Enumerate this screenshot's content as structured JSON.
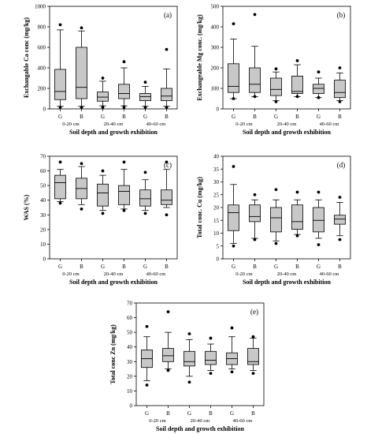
{
  "figure": {
    "xlabel": "Soil depth and growth exhibition",
    "group_labels": [
      "G",
      "B",
      "G",
      "B",
      "G",
      "B"
    ],
    "depth_labels": [
      "0-20 cm",
      "20-40 cm",
      "40-60 cm"
    ]
  },
  "colors": {
    "box_fill": "#c8c8c8",
    "stroke": "#000000",
    "outlier": "#000000"
  },
  "chart_data": [
    {
      "type": "box",
      "panel": "(a)",
      "ylabel": "Exchangable Ca conc (mg/kg)",
      "ylim": [
        0,
        1000
      ],
      "yticks": [
        0,
        200,
        400,
        600,
        800,
        1000
      ],
      "categories": [
        "G 0-20 cm",
        "B 0-20 cm",
        "G 20-40 cm",
        "B 20-40 cm",
        "G 40-60 cm",
        "B 40-60 cm"
      ],
      "boxes": [
        {
          "whisker_low": 25,
          "q1": 90,
          "median": 170,
          "q3": 385,
          "whisker_high": 770,
          "outliers": [
            15,
            820
          ]
        },
        {
          "whisker_low": 25,
          "q1": 100,
          "median": 210,
          "q3": 600,
          "whisker_high": 760,
          "outliers": [
            15,
            790
          ]
        },
        {
          "whisker_low": 30,
          "q1": 75,
          "median": 115,
          "q3": 165,
          "whisker_high": 270,
          "outliers": [
            15,
            300
          ]
        },
        {
          "whisker_low": 30,
          "q1": 100,
          "median": 150,
          "q3": 240,
          "whisker_high": 400,
          "outliers": [
            15,
            460
          ]
        },
        {
          "whisker_low": 25,
          "q1": 80,
          "median": 120,
          "q3": 150,
          "whisker_high": 220,
          "outliers": [
            15,
            260
          ]
        },
        {
          "whisker_low": 25,
          "q1": 80,
          "median": 125,
          "q3": 200,
          "whisker_high": 390,
          "outliers": [
            15,
            580
          ]
        }
      ]
    },
    {
      "type": "box",
      "panel": "(b)",
      "ylabel": "Exchangeable Mg conc. (mg/kg)",
      "ylim": [
        0,
        500
      ],
      "yticks": [
        0,
        100,
        200,
        300,
        400,
        500
      ],
      "categories": [
        "G 0-20 cm",
        "B 0-20 cm",
        "G 20-40 cm",
        "B 20-40 cm",
        "G 40-60 cm",
        "B 40-60 cm"
      ],
      "boxes": [
        {
          "whisker_low": 50,
          "q1": 80,
          "median": 110,
          "q3": 220,
          "whisker_high": 340,
          "outliers": [
            50,
            415
          ]
        },
        {
          "whisker_low": 60,
          "q1": 80,
          "median": 120,
          "q3": 200,
          "whisker_high": 305,
          "outliers": [
            60,
            460
          ]
        },
        {
          "whisker_low": 40,
          "q1": 65,
          "median": 95,
          "q3": 150,
          "whisker_high": 180,
          "outliers": [
            35,
            195
          ]
        },
        {
          "whisker_low": 60,
          "q1": 75,
          "median": 85,
          "q3": 160,
          "whisker_high": 215,
          "outliers": [
            60,
            235
          ]
        },
        {
          "whisker_low": 55,
          "q1": 75,
          "median": 100,
          "q3": 120,
          "whisker_high": 150,
          "outliers": [
            55,
            180
          ]
        },
        {
          "whisker_low": 40,
          "q1": 55,
          "median": 80,
          "q3": 140,
          "whisker_high": 175,
          "outliers": [
            35,
            200
          ]
        }
      ]
    },
    {
      "type": "box",
      "panel": "(c)",
      "ylabel": "WAS (%)",
      "ylim": [
        0,
        70
      ],
      "yticks": [
        0,
        10,
        20,
        30,
        40,
        50,
        60,
        70
      ],
      "categories": [
        "G 0-20 cm",
        "B 0-20 cm",
        "G 20-40 cm",
        "B 20-40 cm",
        "G 40-60 cm",
        "B 40-60 cm"
      ],
      "boxes": [
        {
          "whisker_low": 39,
          "q1": 41,
          "median": 52,
          "q3": 57,
          "whisker_high": 61,
          "outliers": [
            38,
            66
          ]
        },
        {
          "whisker_low": 37,
          "q1": 41,
          "median": 48,
          "q3": 55,
          "whisker_high": 63,
          "outliers": [
            34,
            65
          ]
        },
        {
          "whisker_low": 33,
          "q1": 36,
          "median": 45,
          "q3": 51,
          "whisker_high": 57,
          "outliers": [
            31,
            60
          ]
        },
        {
          "whisker_low": 34,
          "q1": 37,
          "median": 46,
          "q3": 50,
          "whisker_high": 61,
          "outliers": [
            33,
            66
          ]
        },
        {
          "whisker_low": 33,
          "q1": 36,
          "median": 41,
          "q3": 47,
          "whisker_high": 54,
          "outliers": [
            31,
            59
          ]
        },
        {
          "whisker_low": 35,
          "q1": 37,
          "median": 40,
          "q3": 47,
          "whisker_high": 61,
          "outliers": [
            30,
            66
          ]
        }
      ]
    },
    {
      "type": "box",
      "panel": "(d)",
      "ylabel": "Total conc. Cu (mg/kg)",
      "ylim": [
        0,
        40
      ],
      "yticks": [
        0,
        5,
        10,
        15,
        20,
        25,
        30,
        35,
        40
      ],
      "categories": [
        "G 0-20 cm",
        "B 0-20 cm",
        "G 20-40 cm",
        "B 20-40 cm",
        "G 40-60 cm",
        "B 40-60 cm"
      ],
      "boxes": [
        {
          "whisker_low": 6,
          "q1": 11,
          "median": 18,
          "q3": 21,
          "whisker_high": 29,
          "outliers": [
            5,
            36
          ]
        },
        {
          "whisker_low": 8,
          "q1": 14.5,
          "median": 16.5,
          "q3": 21,
          "whisker_high": 23,
          "outliers": [
            7.5,
            25
          ]
        },
        {
          "whisker_low": 7,
          "q1": 10.5,
          "median": 16,
          "q3": 20,
          "whisker_high": 23,
          "outliers": [
            6,
            27
          ]
        },
        {
          "whisker_low": 9.5,
          "q1": 11.5,
          "median": 14.5,
          "q3": 21,
          "whisker_high": 23,
          "outliers": [
            9,
            26
          ]
        },
        {
          "whisker_low": 8,
          "q1": 10.5,
          "median": 15,
          "q3": 20,
          "whisker_high": 23,
          "outliers": [
            5.5,
            26
          ]
        },
        {
          "whisker_low": 9,
          "q1": 13.5,
          "median": 15.5,
          "q3": 17,
          "whisker_high": 22,
          "outliers": [
            7.5,
            24
          ]
        }
      ]
    },
    {
      "type": "box",
      "panel": "(e)",
      "ylabel": "Total conc Zn (mg/kg)",
      "ylim": [
        0,
        70
      ],
      "yticks": [
        0,
        10,
        20,
        30,
        40,
        50,
        60,
        70
      ],
      "categories": [
        "G 0-20 cm",
        "B 0-20 cm",
        "G 20-40 cm",
        "B 20-40 cm",
        "G 40-60 cm",
        "B 40-60 cm"
      ],
      "boxes": [
        {
          "whisker_low": 17,
          "q1": 26,
          "median": 32,
          "q3": 38,
          "whisker_high": 47,
          "outliers": [
            14,
            54
          ]
        },
        {
          "whisker_low": 25,
          "q1": 30,
          "median": 34,
          "q3": 39,
          "whisker_high": 50,
          "outliers": [
            24,
            64
          ]
        },
        {
          "whisker_low": 20,
          "q1": 27,
          "median": 30,
          "q3": 37,
          "whisker_high": 45,
          "outliers": [
            16,
            49
          ]
        },
        {
          "whisker_low": 24,
          "q1": 28,
          "median": 31,
          "q3": 37,
          "whisker_high": 42,
          "outliers": [
            22,
            46
          ]
        },
        {
          "whisker_low": 25,
          "q1": 28,
          "median": 32,
          "q3": 36,
          "whisker_high": 47,
          "outliers": [
            23,
            53
          ]
        },
        {
          "whisker_low": 24,
          "q1": 28,
          "median": 30,
          "q3": 39,
          "whisker_high": 46,
          "outliers": [
            22,
            47
          ]
        }
      ]
    }
  ]
}
